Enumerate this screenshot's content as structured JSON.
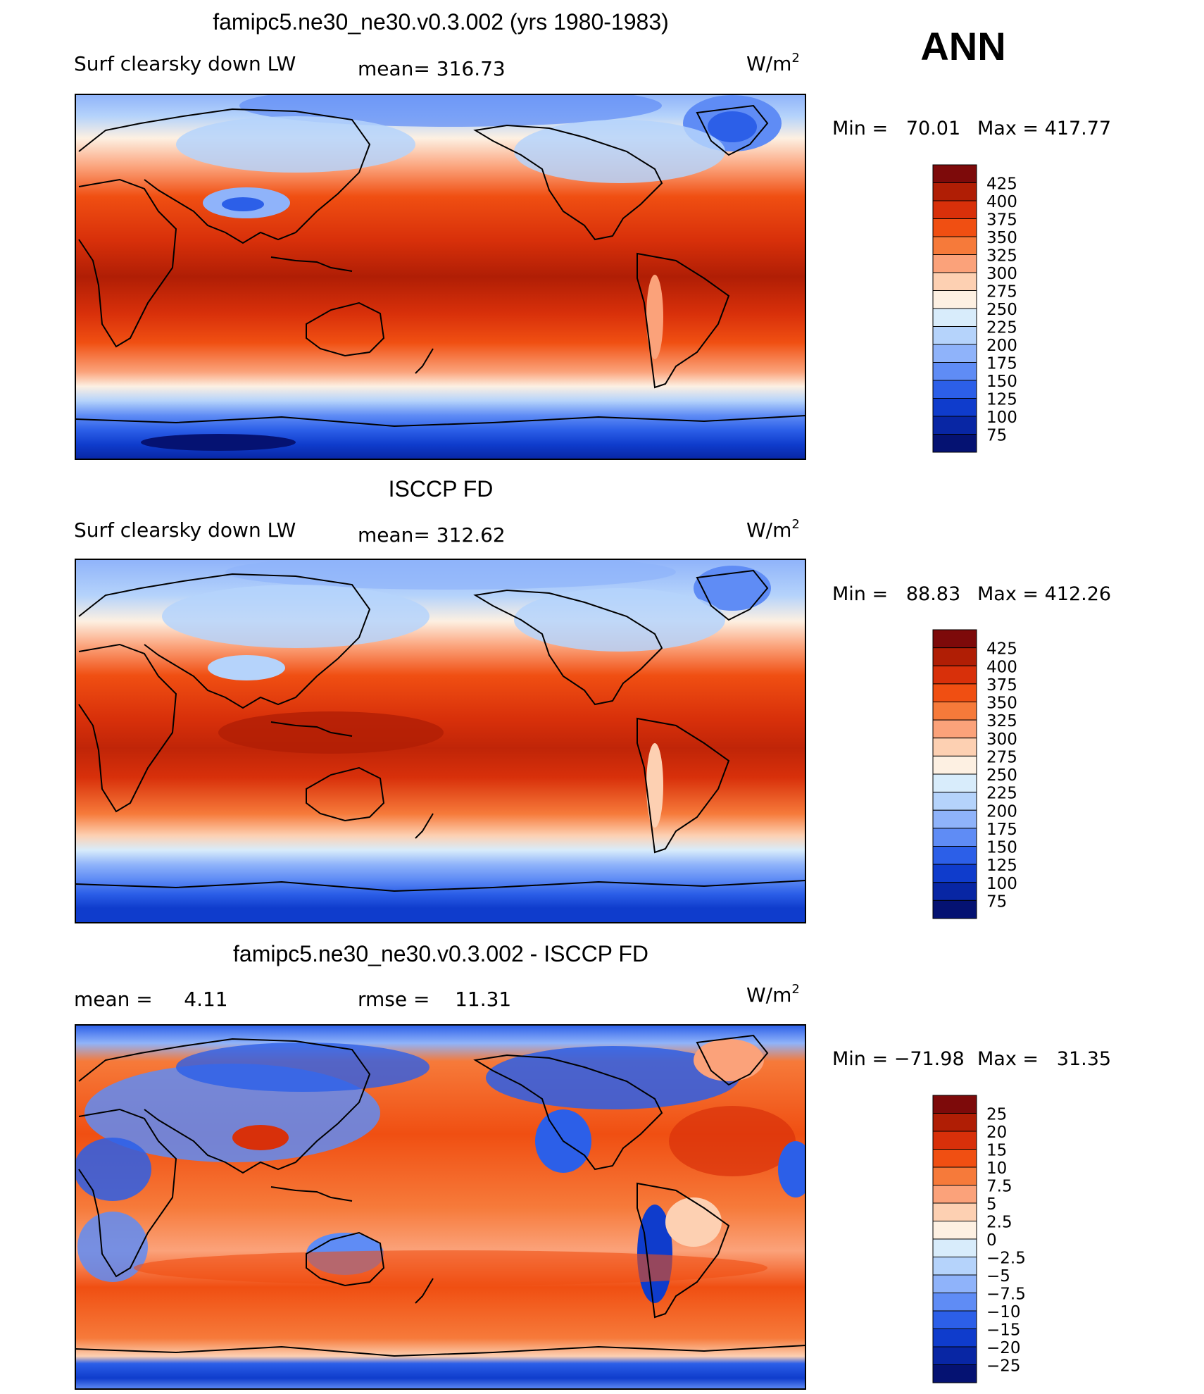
{
  "season": "ANN",
  "units_label": "W/m",
  "units_exp": "2",
  "panels": [
    {
      "title": "famipc5.ne30_ne30.v0.3.002 (yrs 1980-1983)",
      "left_label": "Surf clearsky down LW",
      "center_label": "mean= 316.73",
      "min_text": "Min =   70.01",
      "max_text": "Max = 417.77",
      "field": "model"
    },
    {
      "title": "ISCCP FD",
      "left_label": "Surf clearsky down LW",
      "center_label": "mean= 312.62",
      "min_text": "Min =   88.83",
      "max_text": "Max = 412.26",
      "field": "obs"
    },
    {
      "title": "famipc5.ne30_ne30.v0.3.002 - ISCCP FD",
      "left_label": "mean =     4.11",
      "center_label": "rmse =    11.31",
      "min_text": "Min = −71.98",
      "max_text": "Max =   31.35",
      "field": "diff"
    }
  ],
  "colorbars": {
    "abs": {
      "labels": [
        "425",
        "400",
        "375",
        "350",
        "325",
        "300",
        "275",
        "250",
        "225",
        "200",
        "175",
        "150",
        "125",
        "100",
        "75"
      ],
      "colors": [
        "#7d0a0a",
        "#b01e05",
        "#d8300a",
        "#f04f12",
        "#f67a3a",
        "#fba27a",
        "#fdd0b2",
        "#fdf0e2",
        "#d8ecfb",
        "#b5d3fb",
        "#8fb3fa",
        "#5f8cf5",
        "#2c5fe8",
        "#0f3ccc",
        "#0826a4",
        "#051272"
      ]
    },
    "diff": {
      "labels": [
        "25",
        "20",
        "15",
        "10",
        "7.5",
        "5",
        "2.5",
        "0",
        "−2.5",
        "−5",
        "−7.5",
        "−10",
        "−15",
        "−20",
        "−25"
      ],
      "colors": [
        "#7d0a0a",
        "#b01e05",
        "#d8300a",
        "#f04f12",
        "#f67a3a",
        "#fba27a",
        "#fdd0b2",
        "#fdf0e2",
        "#d8ecfb",
        "#b5d3fb",
        "#8fb3fa",
        "#5f8cf5",
        "#2c5fe8",
        "#0f3ccc",
        "#0826a4",
        "#051272"
      ]
    }
  },
  "map_layers": {
    "coastline_color": "#000000",
    "continents": [
      "africa",
      "eurasia",
      "north-america",
      "south-america",
      "australia",
      "antarctica",
      "greenland"
    ]
  }
}
